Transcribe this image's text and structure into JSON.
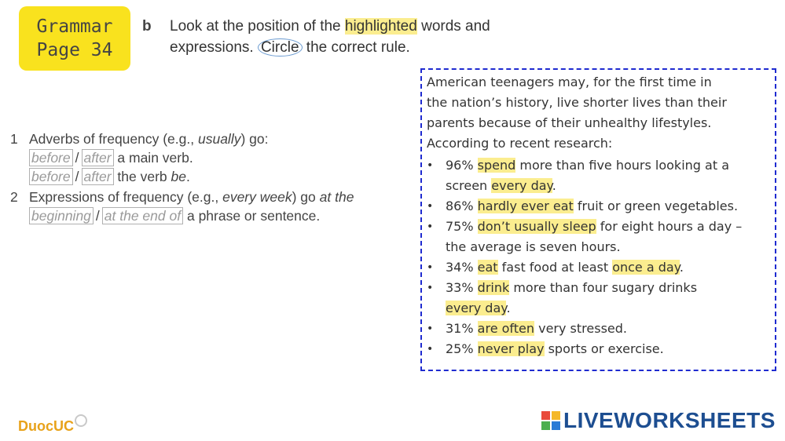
{
  "badge": {
    "line1": "Grammar",
    "line2": "Page 34"
  },
  "instruction": {
    "letter": "b",
    "l1_a": "Look at the position of the ",
    "l1_hl": "highlighted",
    "l1_b": " words and",
    "l2_a": "expressions. ",
    "l2_circle": "Circle",
    "l2_b": " the correct rule."
  },
  "rules": {
    "r1": {
      "num": "1",
      "text_a": "Adverbs of frequency (e.g., ",
      "text_em": "usually",
      "text_b": ") go:",
      "row1": {
        "opt1": "before",
        "opt2": "after",
        "tail": "a main verb."
      },
      "row2": {
        "opt1": "before",
        "opt2": "after",
        "tail_a": "the verb ",
        "tail_em": "be",
        "tail_b": "."
      }
    },
    "r2": {
      "num": "2",
      "text_a": "Expressions of frequency (e.g., ",
      "text_em1": "every week",
      "text_b": ") go ",
      "text_em2": "at the",
      "row1": {
        "opt1": "beginning",
        "opt2": "at the end of",
        "tail": "a phrase or sentence."
      }
    },
    "slash": "/"
  },
  "article": {
    "intro_l1": "American teenagers may, for the first time in",
    "intro_l2": "the nation’s history, live shorter lives than their",
    "intro_l3": "parents because of their unhealthy lifestyles.",
    "intro_l4": "According to recent research:",
    "bullet": "•",
    "items": [
      {
        "a": "96% ",
        "hl1": "spend",
        "b": " more than five hours looking at a",
        "c": "screen ",
        "hl2": "every day",
        "d": "."
      },
      {
        "a": "86% ",
        "hl1": "hardly ever eat",
        "b": " fruit or green vegetables."
      },
      {
        "a": "75% ",
        "hl1": "don’t usually sleep",
        "b": " for eight hours a day –",
        "c": "the average is seven hours."
      },
      {
        "a": "34% ",
        "hl1": "eat",
        "b": " fast food at least ",
        "hl2": "once a day",
        "c": "."
      },
      {
        "a": "33% ",
        "hl1": "drink",
        "b": " more than four sugary drinks",
        "hl2": "every day",
        "c": "."
      },
      {
        "a": "31% ",
        "hl1": "are often",
        "b": " very stressed."
      },
      {
        "a": "25% ",
        "hl1": "never play",
        "b": " sports or exercise."
      }
    ]
  },
  "footer": {
    "left_a": "Duoc",
    "left_b": "UC",
    "right": "LIVEWORKSHEETS"
  },
  "colors": {
    "badge": "#f9e21e",
    "highlight": "#fbed8f",
    "frame": "#1f2bd0",
    "brand_left": "#e8a21a",
    "brand_right": "#1d4e91"
  }
}
